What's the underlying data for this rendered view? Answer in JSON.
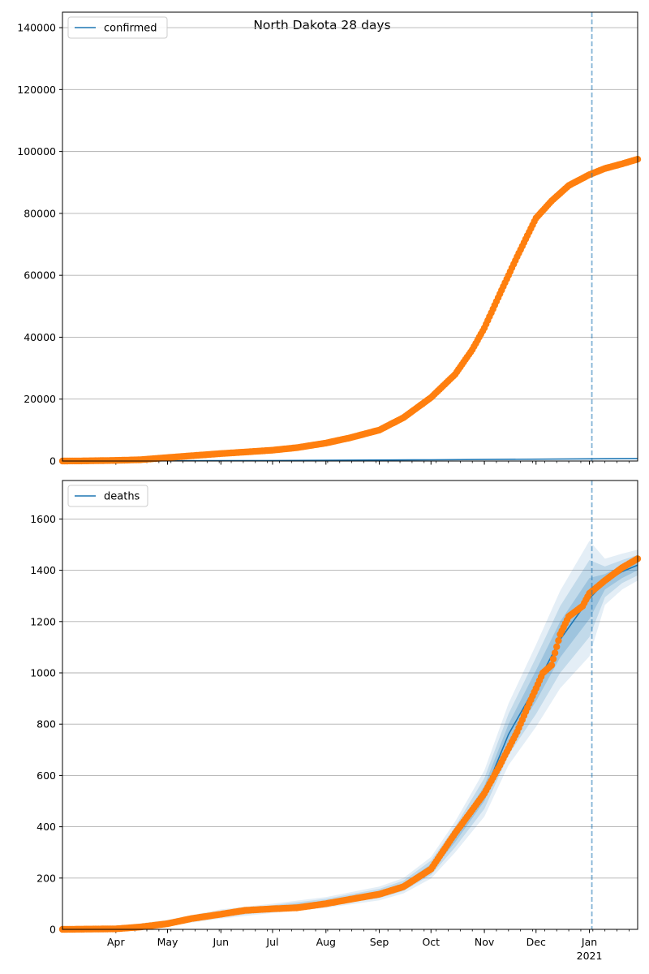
{
  "title": "North Dakota 28 days",
  "colors": {
    "observed": "#ff7f0e",
    "model": "#1f77b4",
    "band": "#1f77b4",
    "grid": "#b0b0b0",
    "cutoff": "#1f77b4"
  },
  "x_axis": {
    "start": "2020-03-01",
    "end": "2021-01-29",
    "month_labels": [
      {
        "date": "2020-04-01",
        "label": "Apr"
      },
      {
        "date": "2020-05-01",
        "label": "May"
      },
      {
        "date": "2020-06-01",
        "label": "Jun"
      },
      {
        "date": "2020-07-01",
        "label": "Jul"
      },
      {
        "date": "2020-08-01",
        "label": "Aug"
      },
      {
        "date": "2020-09-01",
        "label": "Sep"
      },
      {
        "date": "2020-10-01",
        "label": "Oct"
      },
      {
        "date": "2020-11-01",
        "label": "Nov"
      },
      {
        "date": "2020-12-01",
        "label": "Dec"
      },
      {
        "date": "2021-01-01",
        "label": "Jan"
      }
    ],
    "year_label": {
      "date": "2021-01-01",
      "label": "2021"
    },
    "forecast_start": "2021-01-01"
  },
  "chart_data": [
    {
      "type": "line",
      "legend": "confirmed",
      "legend_position": "upper-left",
      "grid": true,
      "ylim": [
        0,
        145000
      ],
      "yticks": [
        "0",
        "20000",
        "40000",
        "60000",
        "80000",
        "100000",
        "120000",
        "140000"
      ],
      "series": [
        {
          "name": "confirmed",
          "kind": "model-line",
          "points": [
            [
              "2020-03-01",
              0
            ],
            [
              "2020-07-01",
              150
            ],
            [
              "2020-10-01",
              400
            ],
            [
              "2021-01-01",
              700
            ],
            [
              "2021-01-29",
              800
            ]
          ]
        },
        {
          "name": "observed",
          "kind": "markers",
          "points": [
            [
              "2020-03-01",
              0
            ],
            [
              "2020-03-15",
              50
            ],
            [
              "2020-04-01",
              200
            ],
            [
              "2020-04-15",
              400
            ],
            [
              "2020-05-01",
              1100
            ],
            [
              "2020-05-15",
              1700
            ],
            [
              "2020-06-01",
              2400
            ],
            [
              "2020-06-15",
              2900
            ],
            [
              "2020-07-01",
              3500
            ],
            [
              "2020-07-15",
              4300
            ],
            [
              "2020-08-01",
              5800
            ],
            [
              "2020-08-15",
              7500
            ],
            [
              "2020-09-01",
              10000
            ],
            [
              "2020-09-15",
              14000
            ],
            [
              "2020-10-01",
              20500
            ],
            [
              "2020-10-15",
              28000
            ],
            [
              "2020-10-25",
              36000
            ],
            [
              "2020-11-01",
              43000
            ],
            [
              "2020-11-10",
              54000
            ],
            [
              "2020-11-20",
              66000
            ],
            [
              "2020-11-27",
              74000
            ],
            [
              "2020-12-01",
              78500
            ],
            [
              "2020-12-10",
              84000
            ],
            [
              "2020-12-20",
              89000
            ],
            [
              "2021-01-01",
              92500
            ],
            [
              "2021-01-10",
              94500
            ],
            [
              "2021-01-20",
              96000
            ],
            [
              "2021-01-29",
              97500
            ]
          ]
        }
      ]
    },
    {
      "type": "line",
      "legend": "deaths",
      "legend_position": "upper-left",
      "grid": true,
      "ylim": [
        0,
        1750
      ],
      "yticks": [
        "0",
        "200",
        "400",
        "600",
        "800",
        "1000",
        "1200",
        "1400",
        "1600"
      ],
      "series": [
        {
          "name": "deaths",
          "kind": "model-line-with-bands",
          "points": [
            [
              "2020-03-01",
              0
            ],
            [
              "2020-04-01",
              5
            ],
            [
              "2020-05-01",
              25
            ],
            [
              "2020-06-01",
              60
            ],
            [
              "2020-07-01",
              82
            ],
            [
              "2020-08-01",
              105
            ],
            [
              "2020-09-01",
              140
            ],
            [
              "2020-09-15",
              170
            ],
            [
              "2020-10-01",
              240
            ],
            [
              "2020-10-15",
              360
            ],
            [
              "2020-11-01",
              530
            ],
            [
              "2020-11-15",
              760
            ],
            [
              "2020-12-01",
              950
            ],
            [
              "2020-12-15",
              1130
            ],
            [
              "2021-01-01",
              1290
            ],
            [
              "2021-01-10",
              1355
            ],
            [
              "2021-01-20",
              1395
            ],
            [
              "2021-01-29",
              1420
            ]
          ],
          "band_widths": [
            [
              0,
              0,
              0
            ],
            [
              2,
              4,
              6
            ],
            [
              4,
              8,
              12
            ],
            [
              6,
              12,
              18
            ],
            [
              6,
              12,
              18
            ],
            [
              7,
              14,
              21
            ],
            [
              9,
              18,
              27
            ],
            [
              10,
              20,
              30
            ],
            [
              14,
              28,
              42
            ],
            [
              20,
              40,
              60
            ],
            [
              30,
              60,
              90
            ],
            [
              40,
              80,
              120
            ],
            [
              60,
              110,
              160
            ],
            [
              70,
              130,
              190
            ],
            [
              80,
              150,
              225
            ],
            [
              30,
              60,
              90
            ],
            [
              25,
              45,
              70
            ],
            [
              20,
              40,
              60
            ]
          ]
        },
        {
          "name": "observed",
          "kind": "markers",
          "points": [
            [
              "2020-03-01",
              0
            ],
            [
              "2020-04-01",
              2
            ],
            [
              "2020-04-15",
              9
            ],
            [
              "2020-05-01",
              22
            ],
            [
              "2020-05-15",
              42
            ],
            [
              "2020-06-01",
              59
            ],
            [
              "2020-06-15",
              74
            ],
            [
              "2020-07-01",
              80
            ],
            [
              "2020-07-15",
              84
            ],
            [
              "2020-08-01",
              100
            ],
            [
              "2020-08-15",
              117
            ],
            [
              "2020-09-01",
              137
            ],
            [
              "2020-09-15",
              166
            ],
            [
              "2020-10-01",
              235
            ],
            [
              "2020-10-15",
              375
            ],
            [
              "2020-11-01",
              530
            ],
            [
              "2020-11-10",
              640
            ],
            [
              "2020-11-20",
              770
            ],
            [
              "2020-11-27",
              880
            ],
            [
              "2020-12-05",
              1000
            ],
            [
              "2020-12-10",
              1030
            ],
            [
              "2020-12-15",
              1150
            ],
            [
              "2020-12-20",
              1220
            ],
            [
              "2020-12-28",
              1260
            ],
            [
              "2021-01-01",
              1310
            ],
            [
              "2021-01-10",
              1360
            ],
            [
              "2021-01-20",
              1410
            ],
            [
              "2021-01-29",
              1445
            ]
          ]
        }
      ]
    }
  ]
}
